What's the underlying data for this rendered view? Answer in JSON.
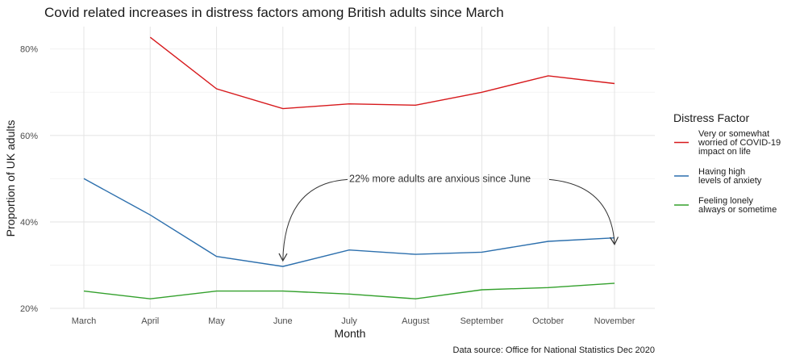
{
  "chart_data": {
    "type": "line",
    "title": "Covid related increases in distress factors among British adults since March",
    "xlabel": "Month",
    "ylabel": "Proportion of UK adults",
    "categories": [
      "March",
      "April",
      "May",
      "June",
      "July",
      "August",
      "September",
      "October",
      "November"
    ],
    "y_ticks": [
      0.2,
      0.4,
      0.6,
      0.8
    ],
    "y_tick_labels": [
      "20%",
      "40%",
      "60%",
      "80%"
    ],
    "ylim": [
      0.2,
      0.86
    ],
    "grid": true,
    "legend": {
      "title": "Distress Factor",
      "position": "right"
    },
    "series": [
      {
        "name": "Very or somewhat worried of COVID-19 impact on life",
        "label_lines": [
          "Very or somewhat",
          "worried of COVID-19",
          "impact on life"
        ],
        "color": "#d7191c",
        "values": [
          null,
          0.827,
          0.708,
          0.662,
          0.673,
          0.67,
          0.7,
          0.738,
          0.72
        ]
      },
      {
        "name": "Having high levels of anxiety",
        "label_lines": [
          "Having high",
          "levels of anxiety"
        ],
        "color": "#2c6fad",
        "values": [
          0.5,
          0.416,
          0.32,
          0.297,
          0.335,
          0.325,
          0.33,
          0.355,
          0.363
        ]
      },
      {
        "name": "Feeling lonely always or sometime",
        "label_lines": [
          "Feeling lonely",
          "always or sometime"
        ],
        "color": "#33a02c",
        "values": [
          0.24,
          0.222,
          0.24,
          0.24,
          0.233,
          0.222,
          0.243,
          0.248,
          0.258
        ]
      }
    ],
    "annotation": {
      "text": "22% more adults are anxious since June",
      "anchor_month": "July",
      "anchor_value": 0.5,
      "arrow_from": "June",
      "arrow_to": "November"
    },
    "caption": "Data source: Office for National Statistics Dec 2020"
  }
}
